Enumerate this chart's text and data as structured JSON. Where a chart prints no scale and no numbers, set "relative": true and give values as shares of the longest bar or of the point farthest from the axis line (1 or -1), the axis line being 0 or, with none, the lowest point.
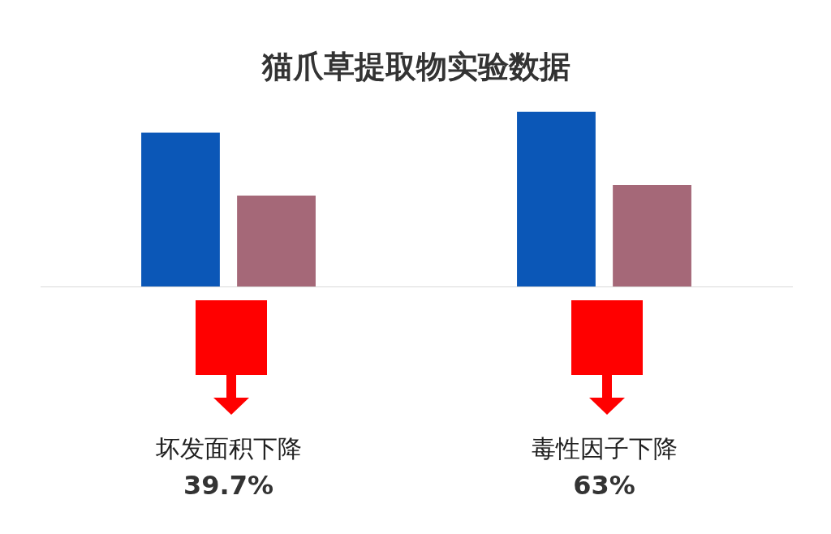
{
  "chart_data": {
    "type": "bar",
    "title": "猫爪草提取物实验数据",
    "categories": [
      "坏发面积下降",
      "毒性因子下降"
    ],
    "relative": true,
    "series": [
      {
        "color": "#0b57b7",
        "values": [
          0.88,
          1
        ]
      },
      {
        "color": "#a56878",
        "values": [
          0.52,
          0.58
        ]
      }
    ],
    "annotations": [
      "39.7%",
      "63%"
    ]
  }
}
